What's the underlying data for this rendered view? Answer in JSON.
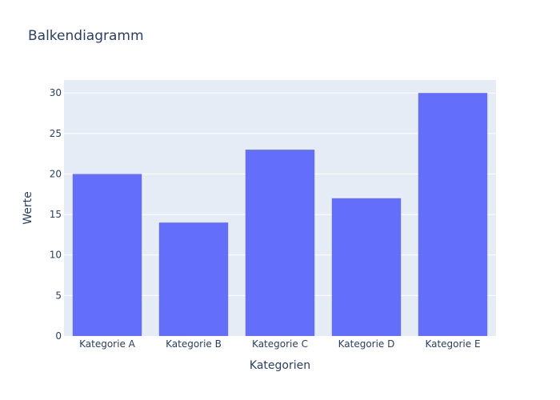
{
  "chart_data": {
    "type": "bar",
    "title": "Balkendiagramm",
    "xlabel": "Kategorien",
    "ylabel": "Werte",
    "categories": [
      "Kategorie A",
      "Kategorie B",
      "Kategorie C",
      "Kategorie D",
      "Kategorie E"
    ],
    "values": [
      20,
      14,
      23,
      17,
      30
    ],
    "ylim": [
      0,
      31.6
    ],
    "yticks": [
      0,
      5,
      10,
      15,
      20,
      25,
      30
    ],
    "grid": true,
    "legend": false
  },
  "colors": {
    "bar": "#636efa",
    "plot_background": "#e5ecf6",
    "grid": "#ffffff",
    "text": "#2a3f5f",
    "page_background": "#ffffff"
  }
}
